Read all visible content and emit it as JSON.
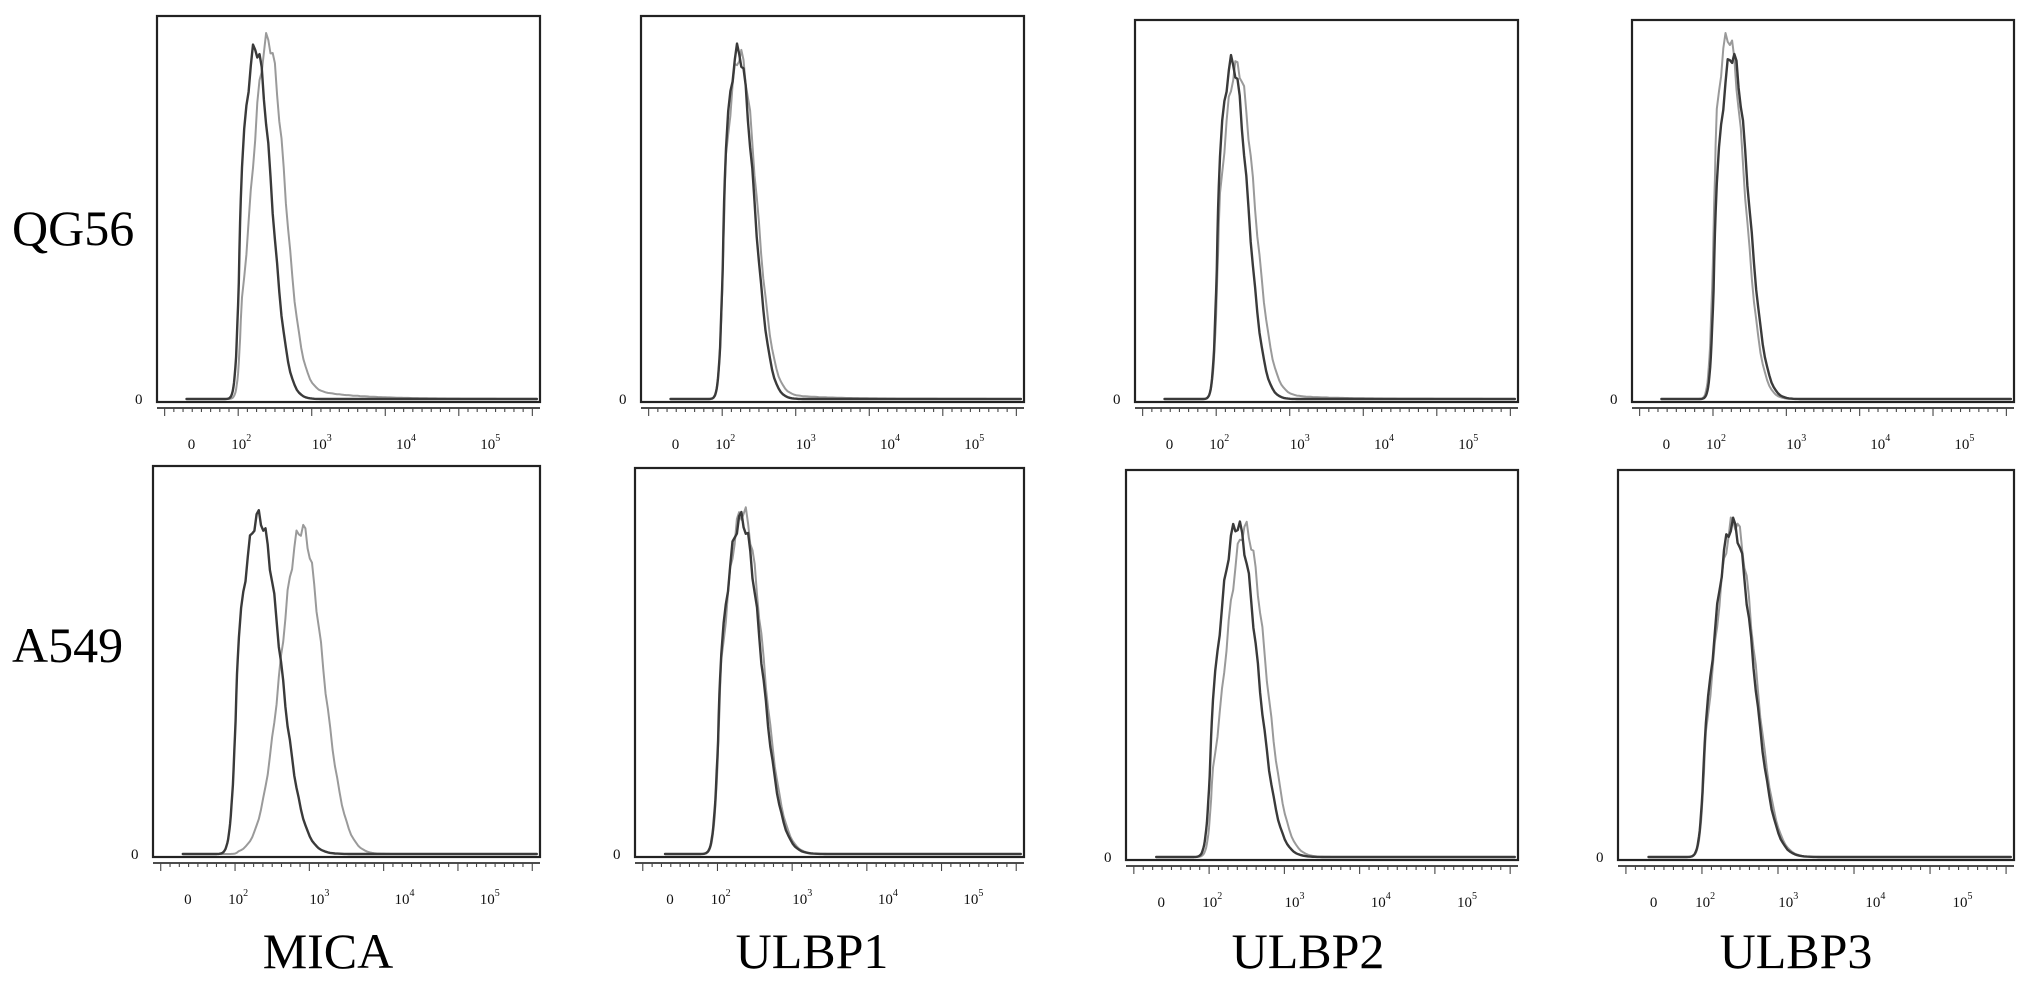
{
  "figure": {
    "row_labels": [
      "QG56",
      "A549"
    ],
    "column_labels": [
      "MICA",
      "ULBP1",
      "ULBP2",
      "ULBP3"
    ],
    "zero_label": "0",
    "x_tick_labels": [
      {
        "base": "0",
        "exp": ""
      },
      {
        "base": "10",
        "exp": "2"
      },
      {
        "base": "10",
        "exp": "3"
      },
      {
        "base": "10",
        "exp": "4"
      },
      {
        "base": "10",
        "exp": "5"
      }
    ],
    "colors": {
      "control": "#3a3a3a",
      "stained": "#9a9a9a",
      "frame": "#222222"
    }
  },
  "chart_data": [
    {
      "type": "area",
      "row": "QG56",
      "column": "MICA",
      "x_scale": "biexponential-log",
      "series": [
        {
          "center": 2.18,
          "sd": 0.19,
          "peak": 0.93,
          "tail": 0.0
        },
        {
          "center": 2.33,
          "sd": 0.2,
          "peak": 0.95,
          "tail": 0.06
        }
      ]
    },
    {
      "type": "area",
      "row": "QG56",
      "column": "ULBP1",
      "x_scale": "biexponential-log",
      "series": [
        {
          "center": 2.16,
          "sd": 0.19,
          "peak": 0.92,
          "tail": 0.0
        },
        {
          "center": 2.18,
          "sd": 0.2,
          "peak": 0.91,
          "tail": 0.03
        }
      ]
    },
    {
      "type": "area",
      "row": "QG56",
      "column": "ULBP2",
      "x_scale": "biexponential-log",
      "series": [
        {
          "center": 2.16,
          "sd": 0.19,
          "peak": 0.9,
          "tail": 0.0
        },
        {
          "center": 2.22,
          "sd": 0.21,
          "peak": 0.89,
          "tail": 0.03
        }
      ]
    },
    {
      "type": "area",
      "row": "QG56",
      "column": "ULBP3",
      "x_scale": "biexponential-log",
      "series": [
        {
          "center": 2.2,
          "sd": 0.2,
          "peak": 0.92,
          "tail": 0.0
        },
        {
          "center": 2.15,
          "sd": 0.2,
          "peak": 0.97,
          "tail": 0.0
        }
      ]
    },
    {
      "type": "area",
      "row": "A549",
      "column": "MICA",
      "x_scale": "biexponential-log",
      "series": [
        {
          "center": 2.25,
          "sd": 0.26,
          "peak": 0.88,
          "tail": 0.0
        },
        {
          "center": 2.78,
          "sd": 0.25,
          "peak": 0.85,
          "tail": 0.0
        }
      ]
    },
    {
      "type": "area",
      "row": "A549",
      "column": "ULBP1",
      "x_scale": "biexponential-log",
      "series": [
        {
          "center": 2.25,
          "sd": 0.24,
          "peak": 0.88,
          "tail": 0.0
        },
        {
          "center": 2.27,
          "sd": 0.24,
          "peak": 0.9,
          "tail": 0.0
        }
      ]
    },
    {
      "type": "area",
      "row": "A549",
      "column": "ULBP2",
      "x_scale": "biexponential-log",
      "series": [
        {
          "center": 2.3,
          "sd": 0.24,
          "peak": 0.87,
          "tail": 0.0
        },
        {
          "center": 2.4,
          "sd": 0.24,
          "peak": 0.86,
          "tail": 0.0
        }
      ]
    },
    {
      "type": "area",
      "row": "A549",
      "column": "ULBP3",
      "x_scale": "biexponential-log",
      "series": [
        {
          "center": 2.33,
          "sd": 0.24,
          "peak": 0.87,
          "tail": 0.0
        },
        {
          "center": 2.35,
          "sd": 0.24,
          "peak": 0.88,
          "tail": 0.0
        }
      ]
    }
  ]
}
